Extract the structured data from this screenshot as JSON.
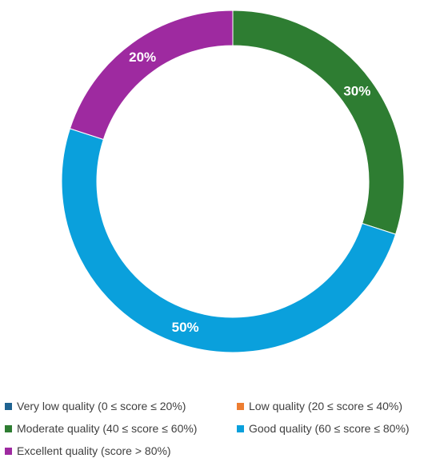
{
  "chart_data": {
    "type": "pie",
    "donut": true,
    "title": "",
    "series": [
      {
        "name": "Very low quality (0 ≤ score ≤ 20%)",
        "value": 0,
        "color": "#1f6391",
        "label": ""
      },
      {
        "name": "Low quality (20 ≤ score ≤ 40%)",
        "value": 0,
        "color": "#ed7d31",
        "label": ""
      },
      {
        "name": "Moderate quality (40 ≤ score ≤ 60%)",
        "value": 30,
        "color": "#2e7d32",
        "label": "30%"
      },
      {
        "name": "Good quality (60 ≤ score ≤ 80%)",
        "value": 50,
        "color": "#0aa0dc",
        "label": "50%"
      },
      {
        "name": "Excellent quality (score > 80%)",
        "value": 20,
        "color": "#9e2aa0",
        "label": "20%"
      }
    ],
    "legend_position": "bottom"
  }
}
